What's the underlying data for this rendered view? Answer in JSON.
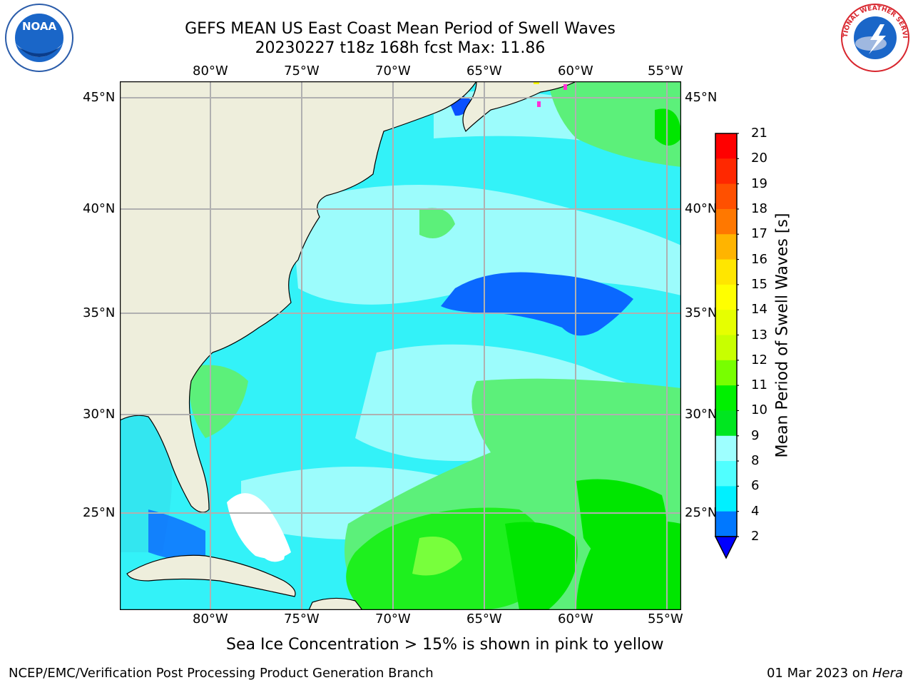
{
  "header": {
    "title_line1": "GEFS MEAN US East Coast Mean Period of Swell Waves",
    "title_line2": "20230227 t18z 168h fcst   Max: 11.86"
  },
  "map": {
    "lon_labels": [
      "80°W",
      "75°W",
      "70°W",
      "65°W",
      "60°W",
      "55°W"
    ],
    "lat_labels": [
      "45°N",
      "40°N",
      "35°N",
      "30°N",
      "25°N"
    ],
    "ocean_color": "#33f2f8",
    "land_color": "#eeeedc",
    "ice_color": "#ff2fd6"
  },
  "colorbar": {
    "label": "Mean Period of Swell Waves [s]",
    "ticks": [
      "21",
      "20",
      "19",
      "18",
      "17",
      "16",
      "15",
      "14",
      "13",
      "12",
      "11",
      "10",
      "9",
      "8",
      "6",
      "4",
      "2"
    ],
    "colors": [
      "#ff0000",
      "#ff2800",
      "#ff5000",
      "#ff7800",
      "#ff9600",
      "#ffb400",
      "#ffe600",
      "#ffff00",
      "#e6ff00",
      "#c8ff00",
      "#78ff00",
      "#00f000",
      "#00e620",
      "#50ff7a",
      "#9effff",
      "#50ffff",
      "#00f0ff",
      "#0078ff"
    ],
    "extend_color": "#0000ff"
  },
  "footer": {
    "ice_note": "Sea Ice Concentration > 15% is shown in pink to yellow",
    "branch": "NCEP/EMC/Verification Post Processing Product Generation Branch",
    "date": "01 Mar 2023 on ",
    "machine": "Hera"
  },
  "logos": {
    "noaa_text": "NOAA",
    "nws_text": "NATIONAL WEATHER SERVICE"
  }
}
